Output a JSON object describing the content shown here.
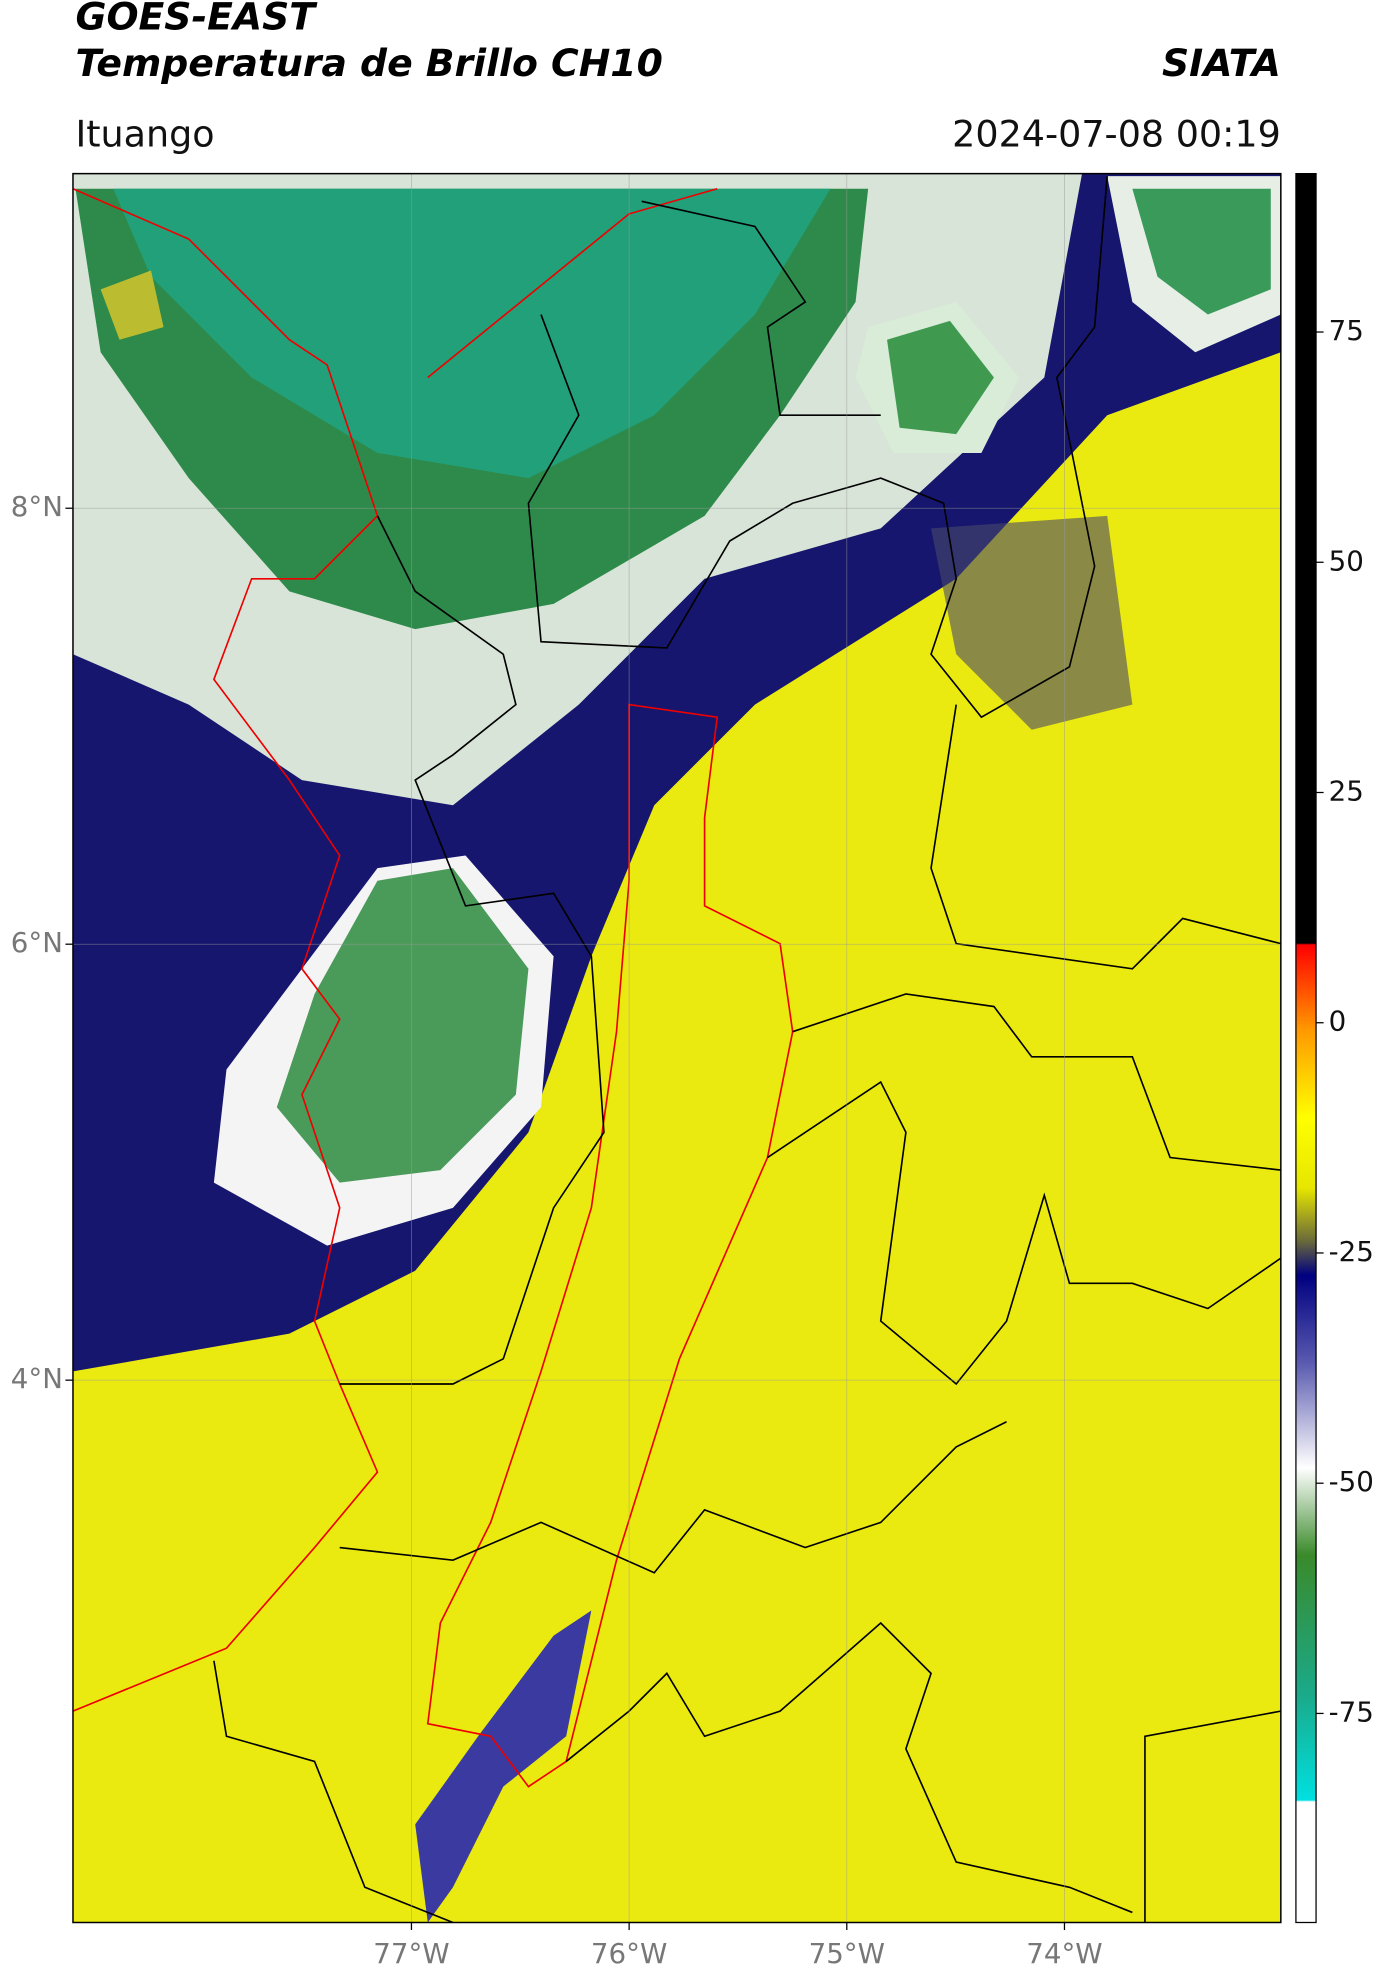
{
  "header": {
    "title": "GOES-EAST",
    "subtitle": "Temperatura de Brillo CH10",
    "brand": "SIATA",
    "location": "Ituango",
    "datetime": "2024-07-08 00:19"
  },
  "map": {
    "xlim": [
      -78.555,
      -73.006
    ],
    "ylim": [
      1.512,
      9.535
    ],
    "xticks": [
      {
        "value": -77,
        "label": "77°W"
      },
      {
        "value": -76,
        "label": "76°W"
      },
      {
        "value": -75,
        "label": "75°W"
      },
      {
        "value": -74,
        "label": "74°W"
      }
    ],
    "yticks": [
      {
        "value": 4,
        "label": "4°N"
      },
      {
        "value": 6,
        "label": "6°N"
      },
      {
        "value": 8,
        "label": "8°N"
      }
    ]
  },
  "colorbar": {
    "lim": [
      -97.7,
      92.2
    ],
    "ticks": [
      -75,
      -50,
      -25,
      0,
      25,
      50,
      75
    ]
  }
}
